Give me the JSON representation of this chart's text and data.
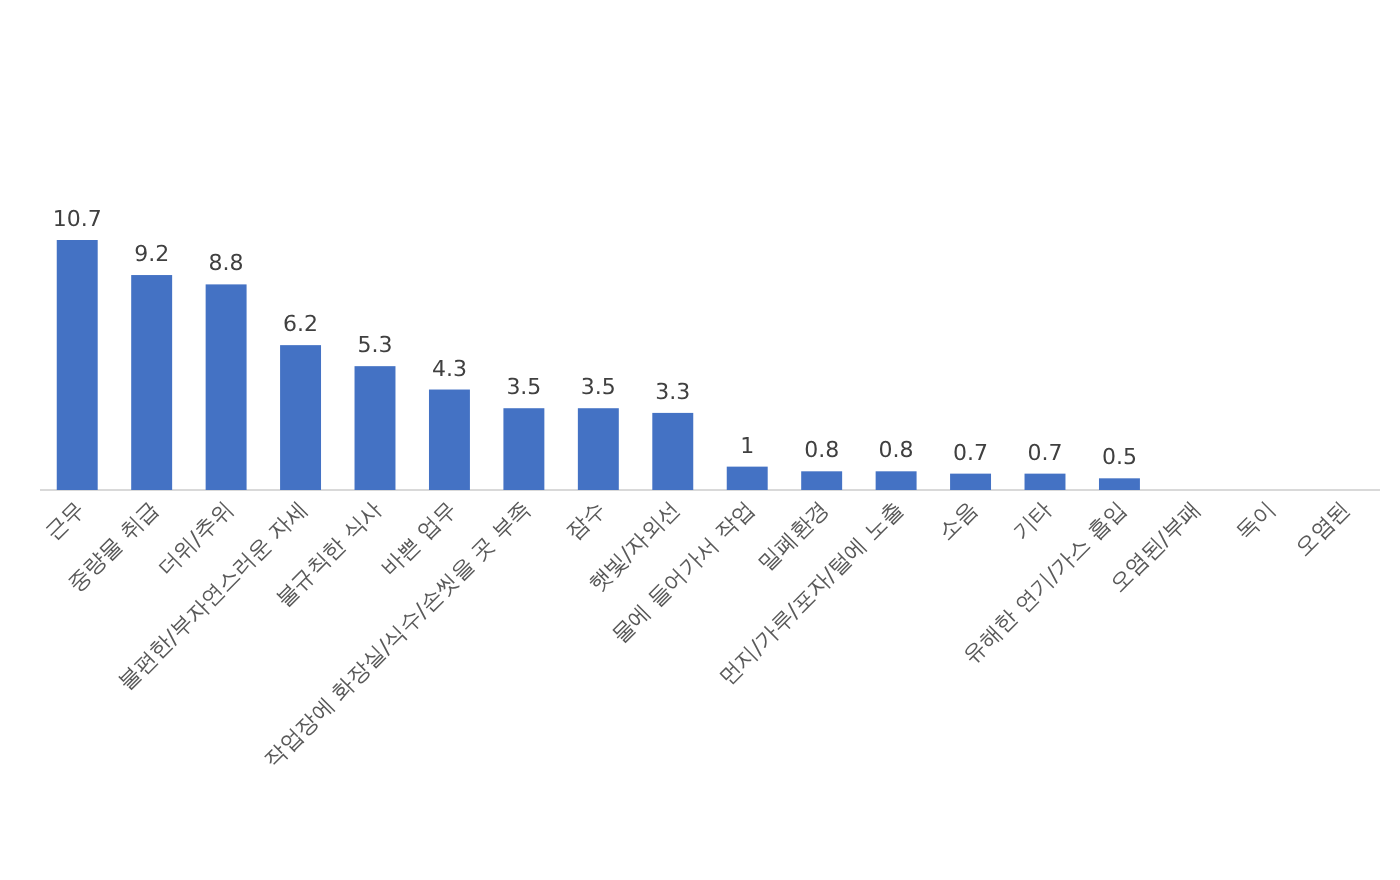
{
  "chart_data": {
    "type": "bar",
    "data_labels": true,
    "color": "#4472c4",
    "categories": [
      "근무",
      "중량물 취급",
      "더위/추위",
      "불편한/부자연스러운 자세",
      "불규칙한 식사",
      "바쁜 업무",
      "작업장에 화장실/식수/손씻을 곳 부족",
      "잠수",
      "햇빛/자외선",
      "물에 들어가서 작업",
      "밀폐환경",
      "먼지/가루/포자/털에 노출",
      "소음",
      "기타",
      "유해한 연기/가스 흡입",
      "오염된/부패",
      "독이",
      "오염된"
    ],
    "values": [
      10.7,
      9.2,
      8.8,
      6.2,
      5.3,
      4.3,
      3.5,
      3.5,
      3.3,
      1,
      0.8,
      0.8,
      0.7,
      0.7,
      0.5,
      null,
      null,
      null
    ]
  }
}
